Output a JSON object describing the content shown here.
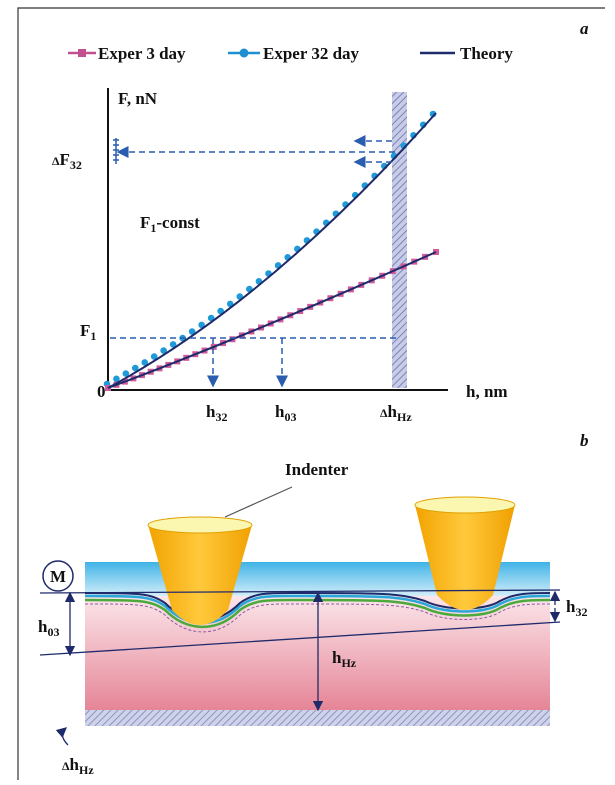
{
  "panel_a": {
    "tag": "a",
    "legend": [
      "Exper 3 day",
      "Exper 32 day",
      "Theory"
    ],
    "y_axis_label": "F, nN",
    "x_axis_label": "h, nm",
    "origin": "0",
    "delta_f32": [
      "Δ",
      "F",
      "32"
    ],
    "f1": [
      "F",
      "1"
    ],
    "f1_const": [
      "F",
      "1",
      "-const"
    ],
    "h32": [
      "h",
      "32"
    ],
    "h03": [
      "h",
      "03"
    ],
    "delta_hhz": [
      "Δ",
      "h",
      "Hz"
    ]
  },
  "panel_b": {
    "tag": "b",
    "indenter": "Indenter",
    "m": "M",
    "h03": [
      "h",
      "03"
    ],
    "hhz": [
      "h",
      "Hz"
    ],
    "h32": [
      "h",
      "32"
    ],
    "delta_hhz": [
      "Δ",
      "h",
      "Hz"
    ]
  }
}
